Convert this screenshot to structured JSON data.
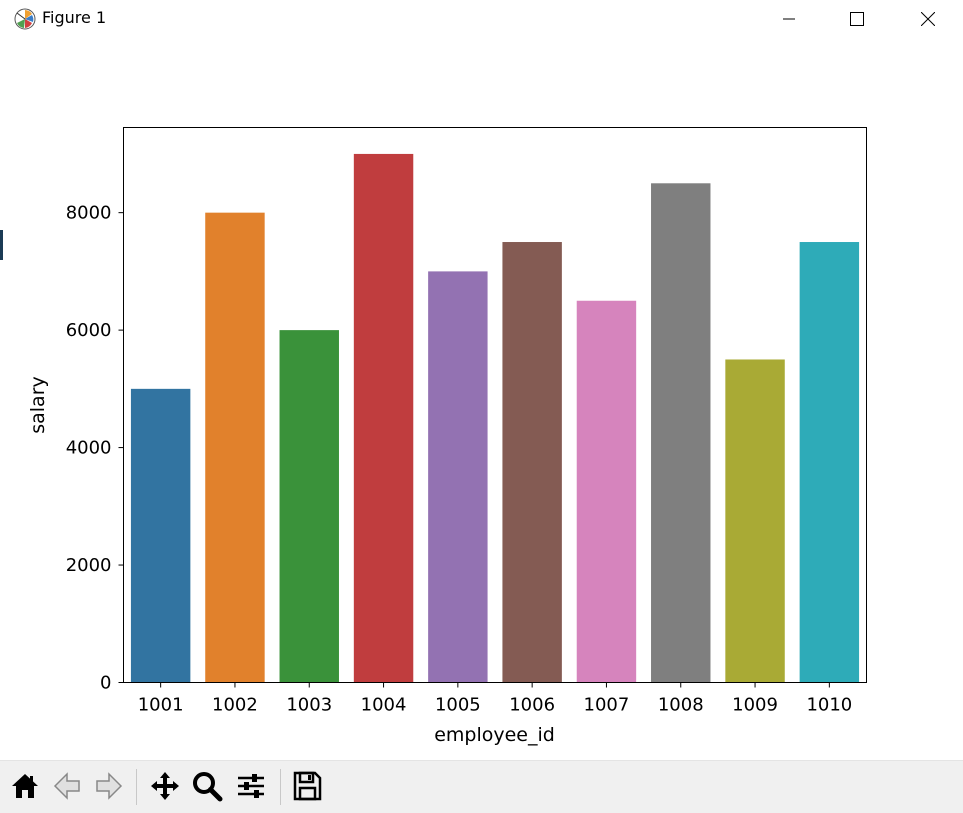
{
  "window": {
    "title": "Figure 1",
    "icon": "matplotlib-logo-icon",
    "controls": [
      "minimize-icon",
      "maximize-icon",
      "close-icon"
    ]
  },
  "chart_data": {
    "type": "bar",
    "title": "",
    "xlabel": "employee_id",
    "ylabel": "salary",
    "categories": [
      "1001",
      "1002",
      "1003",
      "1004",
      "1005",
      "1006",
      "1007",
      "1008",
      "1009",
      "1010"
    ],
    "values": [
      5000,
      8000,
      6000,
      9000,
      7000,
      7500,
      6500,
      8500,
      5500,
      7500
    ],
    "colors": [
      "#3274a1",
      "#e1812c",
      "#3a923a",
      "#c03d3e",
      "#9372b2",
      "#845b53",
      "#d684bd",
      "#7f7f7f",
      "#a9aa35",
      "#2eabb8"
    ],
    "ylim": [
      0,
      9450
    ],
    "yticks": [
      "0",
      "2000",
      "4000",
      "6000",
      "8000"
    ],
    "grid": false,
    "legend": "none"
  },
  "toolbar": {
    "buttons": [
      {
        "name": "home-icon"
      },
      {
        "name": "back-arrow-icon"
      },
      {
        "name": "forward-arrow-icon"
      },
      {
        "name": "pan-icon"
      },
      {
        "name": "zoom-icon"
      },
      {
        "name": "configure-subplots-icon"
      },
      {
        "name": "save-icon"
      }
    ]
  }
}
